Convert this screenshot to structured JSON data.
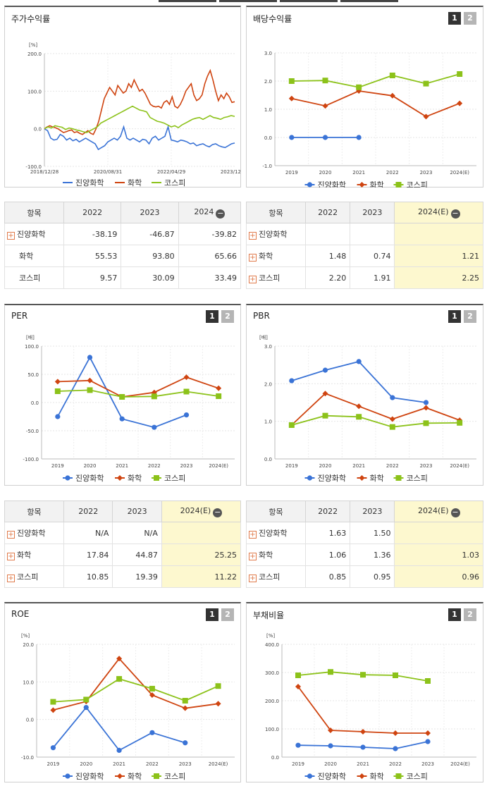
{
  "panels": {
    "stock_return": {
      "title": "주가수익률",
      "unit": "[%]"
    },
    "dividend": {
      "title": "배당수익률",
      "unit": "",
      "pages": [
        "1",
        "2"
      ]
    },
    "per": {
      "title": "PER",
      "unit": "[배]",
      "pages": [
        "1",
        "2"
      ]
    },
    "pbr": {
      "title": "PBR",
      "unit": "[배]",
      "pages": [
        "1",
        "2"
      ]
    },
    "roe": {
      "title": "ROE",
      "unit": "[%]",
      "pages": [
        "1",
        "2"
      ]
    },
    "debt": {
      "title": "부채비율",
      "unit": "[%]",
      "pages": [
        "1",
        "2"
      ]
    }
  },
  "legend": [
    "진양화학",
    "화학",
    "코스피"
  ],
  "colors": {
    "company": "#3a73d6",
    "industry": "#cf4410",
    "kospi": "#8cc21a"
  },
  "chart_data": [
    {
      "type": "line",
      "title": "주가수익률",
      "ylabel": "[%]",
      "ylim": [
        -100,
        200
      ],
      "yticks": [
        "200.0",
        "100.0",
        "0.0",
        "-100.0"
      ],
      "xticks": [
        "2018/12/28",
        "2020/08/31",
        "2022/04/29",
        "2023/12/28"
      ],
      "series": [
        {
          "name": "진양화학",
          "values": [
            0,
            -5,
            -25,
            -30,
            -28,
            -15,
            -20,
            -30,
            -25,
            -32,
            -28,
            -35,
            -30,
            -25,
            -30,
            -35,
            -40,
            -55,
            -50,
            -45,
            -35,
            -30,
            -25,
            -30,
            -20,
            5,
            -25,
            -30,
            -25,
            -30,
            -35,
            -28,
            -30,
            -40,
            -25,
            -20,
            -30,
            -25,
            -20,
            5,
            -30,
            -32,
            -35,
            -30,
            -32,
            -35,
            -40,
            -38,
            -45,
            -42,
            -40,
            -45,
            -48,
            -42,
            -40,
            -45,
            -48,
            -50,
            -45,
            -40,
            -38
          ]
        },
        {
          "name": "화학",
          "values": [
            0,
            5,
            8,
            5,
            3,
            0,
            -5,
            -10,
            -8,
            -5,
            -3,
            -10,
            -8,
            -12,
            -15,
            -10,
            -5,
            -12,
            -15,
            0,
            20,
            50,
            80,
            95,
            110,
            100,
            90,
            115,
            105,
            95,
            100,
            120,
            110,
            130,
            115,
            100,
            105,
            95,
            80,
            65,
            60,
            58,
            60,
            55,
            70,
            75,
            65,
            85,
            60,
            55,
            65,
            80,
            100,
            110,
            120,
            90,
            75,
            80,
            90,
            120,
            140,
            155,
            130,
            100,
            75,
            90,
            80,
            95,
            85,
            70,
            72
          ]
        },
        {
          "name": "코스피",
          "values": [
            0,
            5,
            2,
            8,
            6,
            4,
            -2,
            2,
            0,
            -3,
            -5,
            -8,
            -10,
            -5,
            0,
            5,
            15,
            20,
            25,
            30,
            35,
            40,
            45,
            50,
            55,
            60,
            55,
            50,
            48,
            45,
            30,
            25,
            20,
            18,
            15,
            10,
            5,
            8,
            3,
            10,
            15,
            20,
            25,
            28,
            30,
            25,
            30,
            35,
            30,
            28,
            25,
            30,
            32,
            35,
            33
          ]
        }
      ]
    },
    {
      "type": "line",
      "title": "배당수익률",
      "ylim": [
        -1,
        3
      ],
      "yticks": [
        "3.0",
        "2.0",
        "1.0",
        "0.0",
        "-1.0"
      ],
      "categories": [
        "2019",
        "2020",
        "2021",
        "2022",
        "2023",
        "2024(E)"
      ],
      "series": [
        {
          "name": "진양화학",
          "values": [
            0,
            0,
            0,
            null,
            null,
            null
          ]
        },
        {
          "name": "화학",
          "values": [
            1.38,
            1.12,
            1.65,
            1.48,
            0.74,
            1.21
          ]
        },
        {
          "name": "코스피",
          "values": [
            2.0,
            2.02,
            1.78,
            2.2,
            1.91,
            2.25
          ]
        }
      ]
    },
    {
      "type": "line",
      "title": "PER",
      "ylabel": "[배]",
      "ylim": [
        -100,
        100
      ],
      "yticks": [
        "100.0",
        "50.0",
        "0.0",
        "-50.0",
        "-100.0"
      ],
      "categories": [
        "2019",
        "2020",
        "2021",
        "2022",
        "2023",
        "2024(E)"
      ],
      "series": [
        {
          "name": "진양화학",
          "values": [
            -25,
            80,
            -29,
            -44,
            -22,
            null
          ]
        },
        {
          "name": "화학",
          "values": [
            37,
            39,
            10,
            17.84,
            44.87,
            25.25
          ]
        },
        {
          "name": "코스피",
          "values": [
            20,
            22,
            10,
            10.85,
            19.39,
            11.22
          ]
        }
      ]
    },
    {
      "type": "line",
      "title": "PBR",
      "ylabel": "[배]",
      "ylim": [
        0,
        3
      ],
      "yticks": [
        "3.0",
        "2.0",
        "1.0",
        "0.0"
      ],
      "categories": [
        "2019",
        "2020",
        "2021",
        "2022",
        "2023",
        "2024(E)"
      ],
      "series": [
        {
          "name": "진양화학",
          "values": [
            2.08,
            2.36,
            2.59,
            1.63,
            1.5,
            null
          ]
        },
        {
          "name": "화학",
          "values": [
            0.9,
            1.74,
            1.4,
            1.06,
            1.36,
            1.03
          ]
        },
        {
          "name": "코스피",
          "values": [
            0.9,
            1.15,
            1.12,
            0.85,
            0.95,
            0.96
          ]
        }
      ]
    },
    {
      "type": "line",
      "title": "ROE",
      "ylabel": "[%]",
      "ylim": [
        -10,
        20
      ],
      "yticks": [
        "20.0",
        "10.0",
        "0.0",
        "-10.0"
      ],
      "categories": [
        "2019",
        "2020",
        "2021",
        "2022",
        "2023",
        "2024(E)"
      ],
      "series": [
        {
          "name": "진양화학",
          "values": [
            -7.5,
            3.2,
            -8.2,
            -3.5,
            -6.2,
            null
          ]
        },
        {
          "name": "화학",
          "values": [
            2.5,
            4.8,
            16.2,
            6.5,
            3.0,
            4.2
          ]
        },
        {
          "name": "코스피",
          "values": [
            4.7,
            5.3,
            10.8,
            8.2,
            5.0,
            8.9
          ]
        }
      ]
    },
    {
      "type": "line",
      "title": "부채비율",
      "ylabel": "[%]",
      "ylim": [
        0,
        400
      ],
      "yticks": [
        "400.0",
        "300.0",
        "200.0",
        "100.0",
        "0.0"
      ],
      "categories": [
        "2019",
        "2020",
        "2021",
        "2022",
        "2023",
        "2024(E)"
      ],
      "series": [
        {
          "name": "진양화학",
          "values": [
            42,
            40,
            35,
            30,
            55,
            null
          ]
        },
        {
          "name": "화학",
          "values": [
            250,
            95,
            90,
            85,
            85,
            null
          ]
        },
        {
          "name": "코스피",
          "values": [
            290,
            302,
            292,
            290,
            270,
            null
          ]
        }
      ]
    }
  ],
  "tables": {
    "returns": {
      "headers": [
        "항목",
        "2022",
        "2023",
        "2024"
      ],
      "rows": [
        {
          "label": "진양화학",
          "values": [
            "-38.19",
            "-46.87",
            "-39.82"
          ]
        },
        {
          "label": "화학",
          "values": [
            "55.53",
            "93.80",
            "65.66"
          ]
        },
        {
          "label": "코스피",
          "values": [
            "9.57",
            "30.09",
            "33.49"
          ]
        }
      ]
    },
    "dividend": {
      "headers": [
        "항목",
        "2022",
        "2023",
        "2024(E)"
      ],
      "rows": [
        {
          "label": "진양화학",
          "values": [
            "",
            "",
            ""
          ]
        },
        {
          "label": "화학",
          "values": [
            "1.48",
            "0.74",
            "1.21"
          ]
        },
        {
          "label": "코스피",
          "values": [
            "2.20",
            "1.91",
            "2.25"
          ]
        }
      ]
    },
    "per": {
      "headers": [
        "항목",
        "2022",
        "2023",
        "2024(E)"
      ],
      "rows": [
        {
          "label": "진양화학",
          "values": [
            "N/A",
            "N/A",
            ""
          ]
        },
        {
          "label": "화학",
          "values": [
            "17.84",
            "44.87",
            "25.25"
          ]
        },
        {
          "label": "코스피",
          "values": [
            "10.85",
            "19.39",
            "11.22"
          ]
        }
      ]
    },
    "pbr": {
      "headers": [
        "항목",
        "2022",
        "2023",
        "2024(E)"
      ],
      "rows": [
        {
          "label": "진양화학",
          "values": [
            "1.63",
            "1.50",
            ""
          ]
        },
        {
          "label": "화학",
          "values": [
            "1.06",
            "1.36",
            "1.03"
          ]
        },
        {
          "label": "코스피",
          "values": [
            "0.85",
            "0.95",
            "0.96"
          ]
        }
      ]
    }
  }
}
